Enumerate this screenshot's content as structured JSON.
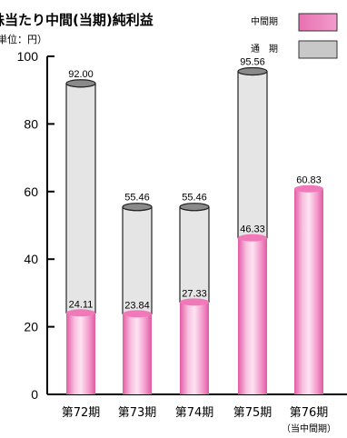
{
  "chart_data": {
    "type": "bar",
    "title": "株当たり中間(当期)純利益",
    "unit_note": "（単位：円）",
    "categories": [
      "第72期",
      "第73期",
      "第74期",
      "第75期",
      "第76期"
    ],
    "category_sub_labels": [
      "",
      "",
      "",
      "",
      "（当中間期）"
    ],
    "series": [
      {
        "name": "中間期",
        "values": [
          24.11,
          23.84,
          27.33,
          46.33,
          60.83
        ],
        "color": "#ea7fb8"
      },
      {
        "name": "通　期",
        "values": [
          92.0,
          55.46,
          55.46,
          95.56,
          null
        ],
        "color": "#c8c8c8"
      }
    ],
    "value_labels": {
      "interim": [
        "24.11",
        "23.84",
        "27.33",
        "46.33",
        "60.83"
      ],
      "full": [
        "92.00",
        "55.46",
        "55.46",
        "95.56",
        ""
      ]
    },
    "ylim": [
      0,
      100
    ],
    "yticks": [
      0,
      20,
      40,
      60,
      80,
      100
    ],
    "legend_position": "top-right",
    "grid": false
  }
}
